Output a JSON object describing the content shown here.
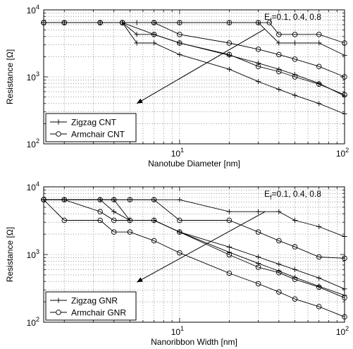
{
  "chart_data": [
    {
      "type": "line",
      "xscale": "log",
      "yscale": "log",
      "xlim": [
        1.5,
        100
      ],
      "ylim": [
        100,
        10000
      ],
      "xticks": [
        {
          "v": 10,
          "base": "10",
          "exp": "1"
        },
        {
          "v": 100,
          "base": "10",
          "exp": "2"
        }
      ],
      "yticks": [
        {
          "v": 100,
          "base": "10",
          "exp": "2"
        },
        {
          "v": 1000,
          "base": "10",
          "exp": "3"
        },
        {
          "v": 10000,
          "base": "10",
          "exp": "4"
        }
      ],
      "grid": true,
      "xlabel": "Nanotube Diameter [nm]",
      "ylabel": "Resistance [Ω]",
      "annotation": {
        "prefix": "E",
        "sub": "f",
        "text": "=0.1, 0.4, 0.8",
        "arrow_from": [
          33,
          5200
        ],
        "arrow_to": [
          5.5,
          400
        ]
      },
      "legend": {
        "placement": "bottom-left",
        "entries": [
          {
            "label": "Zigzag CNT",
            "marker": "plus"
          },
          {
            "label": "Armchair CNT",
            "marker": "circle"
          }
        ]
      },
      "series": [
        {
          "marker": "plus",
          "x": [
            1.5,
            2,
            3.3,
            4.5,
            5.5,
            7,
            10,
            20,
            30,
            40,
            50,
            70,
            100
          ],
          "y": [
            6450,
            6450,
            6450,
            6450,
            6450,
            6450,
            6450,
            6450,
            6450,
            3200,
            3200,
            3200,
            2100
          ]
        },
        {
          "marker": "plus",
          "x": [
            1.5,
            2,
            3.3,
            4.5,
            5.5,
            7,
            10,
            20,
            30,
            40,
            50,
            70,
            100
          ],
          "y": [
            6450,
            6450,
            6450,
            6450,
            4300,
            4300,
            3200,
            2100,
            1600,
            1300,
            1080,
            800,
            520
          ]
        },
        {
          "marker": "plus",
          "x": [
            1.5,
            2,
            3.3,
            4.5,
            5.5,
            7,
            10,
            20,
            30,
            40,
            50,
            70,
            100
          ],
          "y": [
            6450,
            6450,
            6450,
            6450,
            3200,
            3200,
            2150,
            1300,
            850,
            650,
            530,
            400,
            280
          ]
        },
        {
          "marker": "circle",
          "x": [
            1.5,
            2,
            3.3,
            4.5,
            7,
            10,
            20,
            30,
            35,
            40,
            50,
            70,
            100
          ],
          "y": [
            6450,
            6450,
            6450,
            6450,
            6450,
            6450,
            6450,
            6450,
            6450,
            4300,
            4300,
            4300,
            3200
          ]
        },
        {
          "marker": "circle",
          "x": [
            1.5,
            2,
            3.3,
            4.5,
            7,
            10,
            20,
            30,
            40,
            50,
            70,
            100
          ],
          "y": [
            6450,
            6450,
            6450,
            6450,
            6450,
            4300,
            3200,
            2580,
            2150,
            1840,
            1430,
            1000
          ]
        },
        {
          "marker": "circle",
          "x": [
            1.5,
            2,
            3.3,
            4.5,
            7,
            10,
            20,
            30,
            40,
            50,
            70,
            100
          ],
          "y": [
            6450,
            6450,
            6450,
            6450,
            4300,
            3200,
            2150,
            1430,
            1200,
            1000,
            780,
            540
          ]
        }
      ]
    },
    {
      "type": "line",
      "xscale": "log",
      "yscale": "log",
      "xlim": [
        1.5,
        100
      ],
      "ylim": [
        100,
        10000
      ],
      "xticks": [
        {
          "v": 10,
          "base": "10",
          "exp": "1"
        },
        {
          "v": 100,
          "base": "10",
          "exp": "2"
        }
      ],
      "yticks": [
        {
          "v": 100,
          "base": "10",
          "exp": "2"
        },
        {
          "v": 1000,
          "base": "10",
          "exp": "3"
        },
        {
          "v": 10000,
          "base": "10",
          "exp": "4"
        }
      ],
      "grid": true,
      "xlabel": "Nanoribbon Width [nm]",
      "ylabel": "Resistance [Ω]",
      "annotation": {
        "prefix": "E",
        "sub": "f",
        "text": "=0.1, 0.4, 0.8",
        "arrow_from": [
          33,
          4300
        ],
        "arrow_to": [
          5.5,
          390
        ]
      },
      "legend": {
        "placement": "bottom-left",
        "entries": [
          {
            "label": "Zigzag GNR",
            "marker": "plus"
          },
          {
            "label": "Armchair GNR",
            "marker": "circle"
          }
        ]
      },
      "series": [
        {
          "marker": "plus",
          "x": [
            1.5,
            2,
            3.3,
            4,
            5,
            7,
            10,
            20,
            30,
            40,
            50,
            70,
            100
          ],
          "y": [
            6450,
            6450,
            6450,
            6450,
            6450,
            6450,
            6450,
            4300,
            4300,
            4300,
            3200,
            2580,
            1840
          ]
        },
        {
          "marker": "plus",
          "x": [
            1.5,
            2,
            3.3,
            4,
            5,
            7,
            10,
            20,
            30,
            40,
            50,
            70,
            100
          ],
          "y": [
            6450,
            6450,
            6450,
            4300,
            3200,
            3200,
            2150,
            1290,
            920,
            720,
            600,
            450,
            310
          ]
        },
        {
          "marker": "plus",
          "x": [
            1.5,
            2,
            3.3,
            4,
            5,
            7,
            10,
            20,
            30,
            40,
            50,
            70,
            100
          ],
          "y": [
            6450,
            6450,
            6450,
            6450,
            3200,
            3200,
            2150,
            1080,
            740,
            570,
            460,
            340,
            250
          ]
        },
        {
          "marker": "circle",
          "x": [
            1.5,
            2,
            3.3,
            4,
            5,
            7,
            10,
            20,
            30,
            40,
            50,
            70,
            100
          ],
          "y": [
            6450,
            6450,
            6450,
            6450,
            6450,
            6450,
            3200,
            3200,
            2150,
            1600,
            1300,
            920,
            880
          ]
        },
        {
          "marker": "circle",
          "x": [
            1.5,
            2,
            3.3,
            4,
            5,
            7,
            10,
            20,
            30,
            40,
            50,
            70,
            100
          ],
          "y": [
            6450,
            6450,
            4300,
            3200,
            3200,
            3200,
            2150,
            990,
            650,
            540,
            430,
            330,
            230
          ]
        },
        {
          "marker": "circle",
          "x": [
            1.5,
            2,
            3.3,
            4,
            5,
            7,
            10,
            20,
            30,
            40,
            50,
            70,
            100
          ],
          "y": [
            6450,
            3200,
            3200,
            2150,
            2150,
            1600,
            1060,
            530,
            370,
            280,
            220,
            170,
            120
          ]
        }
      ]
    }
  ]
}
